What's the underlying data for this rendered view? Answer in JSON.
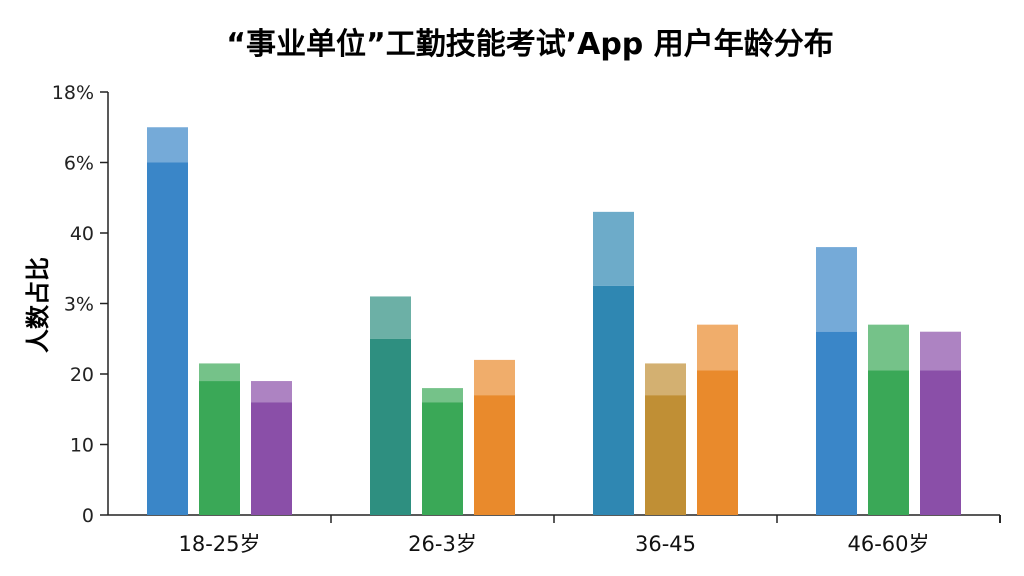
{
  "chart_data": {
    "type": "bar",
    "title": "“事业单位”工勤技能考试’App 用户年龄分布",
    "ylabel": "人数占比",
    "xlabel": "",
    "yticks": [
      "0",
      "10",
      "20",
      "3%",
      "40",
      "6%",
      "18%"
    ],
    "categories": [
      "18-25岁",
      "26-3岁",
      "36-45",
      "46-60岁"
    ],
    "grid": false,
    "bars": [
      [
        {
          "value": 55,
          "base": 50,
          "color": "#3a86c8"
        },
        {
          "value": 21.5,
          "base": 19,
          "color": "#3aa857"
        },
        {
          "value": 19,
          "base": 16,
          "color": "#8a4fa8"
        }
      ],
      [
        {
          "value": 31,
          "base": 25,
          "color": "#2e8f80"
        },
        {
          "value": 18,
          "base": 16,
          "color": "#3aa857"
        },
        {
          "value": 22,
          "base": 17,
          "color": "#e98a2c"
        }
      ],
      [
        {
          "value": 43,
          "base": 32.5,
          "color": "#2f87b2"
        },
        {
          "value": 21.5,
          "base": 17,
          "color": "#c08f35"
        },
        {
          "value": 27,
          "base": 20.5,
          "color": "#e98a2c"
        }
      ],
      [
        {
          "value": 38,
          "base": 26,
          "color": "#3a86c8"
        },
        {
          "value": 27,
          "base": 20.5,
          "color": "#3aa857"
        },
        {
          "value": 26,
          "base": 20.5,
          "color": "#8a4fa8"
        }
      ]
    ]
  }
}
